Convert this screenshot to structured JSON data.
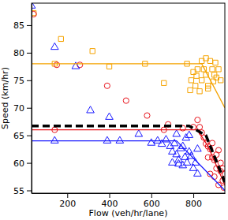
{
  "chart_data": {
    "type": "scatter",
    "x_label": "Flow (veh/hr/lane)",
    "y_label": "Speed (km/hr)",
    "xlim": [
      30,
      950
    ],
    "ylim": [
      54.5,
      89
    ],
    "xticks": [
      200,
      400,
      600,
      800
    ],
    "yticks": [
      55,
      60,
      65,
      70,
      75,
      80,
      85
    ],
    "grid": false,
    "series": [
      {
        "type": "scatter",
        "color": "#f5a300",
        "marker": "square",
        "x": [
          40,
          170,
          140,
          320,
          400,
          570,
          660,
          770,
          790,
          800,
          810,
          820,
          830,
          840,
          850,
          860,
          870,
          880,
          890,
          900,
          910,
          920,
          930,
          860,
          840,
          870,
          895,
          815,
          785,
          905
        ],
        "values": [
          87.2,
          82.5,
          78,
          80.3,
          77.5,
          78,
          74.5,
          78,
          75,
          76.5,
          74,
          77,
          73,
          75,
          77,
          76,
          74,
          78.5,
          77,
          76,
          75.5,
          77,
          75,
          79,
          78.5,
          73.5,
          74.8,
          75.8,
          73.2,
          78.2
        ]
      },
      {
        "type": "scatter",
        "color": "#e8141c",
        "marker": "circle",
        "x": [
          40,
          140,
          150,
          260,
          390,
          480,
          580,
          680,
          660,
          750,
          800,
          820,
          830,
          840,
          850,
          860,
          870,
          880,
          890,
          900,
          910,
          920,
          930,
          940,
          950,
          880,
          900,
          920,
          910,
          930,
          940,
          870,
          890,
          945
        ],
        "values": [
          87,
          66,
          77.8,
          77.8,
          74,
          71.3,
          68.6,
          67,
          66,
          66.3,
          66.5,
          67.8,
          66.5,
          65.5,
          64.6,
          63.5,
          63,
          62.5,
          61,
          60.5,
          61.5,
          62.3,
          60,
          59,
          58,
          58,
          57.5,
          56,
          59,
          58.5,
          56.8,
          61,
          63.6,
          55.5
        ]
      },
      {
        "type": "scatter",
        "color": "#1a1aff",
        "marker": "triangle",
        "x": [
          30,
          140,
          240,
          310,
          400,
          140,
          390,
          450,
          540,
          600,
          630,
          650,
          670,
          690,
          700,
          710,
          720,
          730,
          740,
          750,
          760,
          770,
          780,
          790,
          800,
          810,
          820,
          750,
          765,
          730,
          780,
          700,
          720,
          820
        ],
        "values": [
          88.5,
          81,
          77.5,
          69.5,
          68.3,
          64,
          64,
          64,
          65.2,
          63.6,
          64,
          63.4,
          64.2,
          63,
          62,
          63.5,
          61.5,
          60.5,
          62.6,
          59.5,
          61,
          60,
          62,
          61.2,
          59,
          60,
          58,
          63,
          64.5,
          59.8,
          65,
          60,
          65.2,
          62.5
        ]
      },
      {
        "type": "line",
        "color": "#f5a300",
        "line_style": "solid",
        "x": [
          30,
          840,
          950
        ],
        "values": [
          78,
          78,
          70
        ]
      },
      {
        "type": "line",
        "color": "#e8141c",
        "line_style": "solid",
        "x": [
          30,
          820,
          870,
          950
        ],
        "values": [
          66,
          66,
          63,
          56
        ]
      },
      {
        "type": "line",
        "color": "#1a1aff",
        "line_style": "solid",
        "x": [
          30,
          720,
          950
        ],
        "values": [
          64,
          64,
          55
        ]
      },
      {
        "type": "line",
        "color": "#000000",
        "line_style": "dashed",
        "x": [
          30,
          780,
          860,
          950
        ],
        "values": [
          66.7,
          66.7,
          65,
          56.5
        ]
      }
    ]
  }
}
